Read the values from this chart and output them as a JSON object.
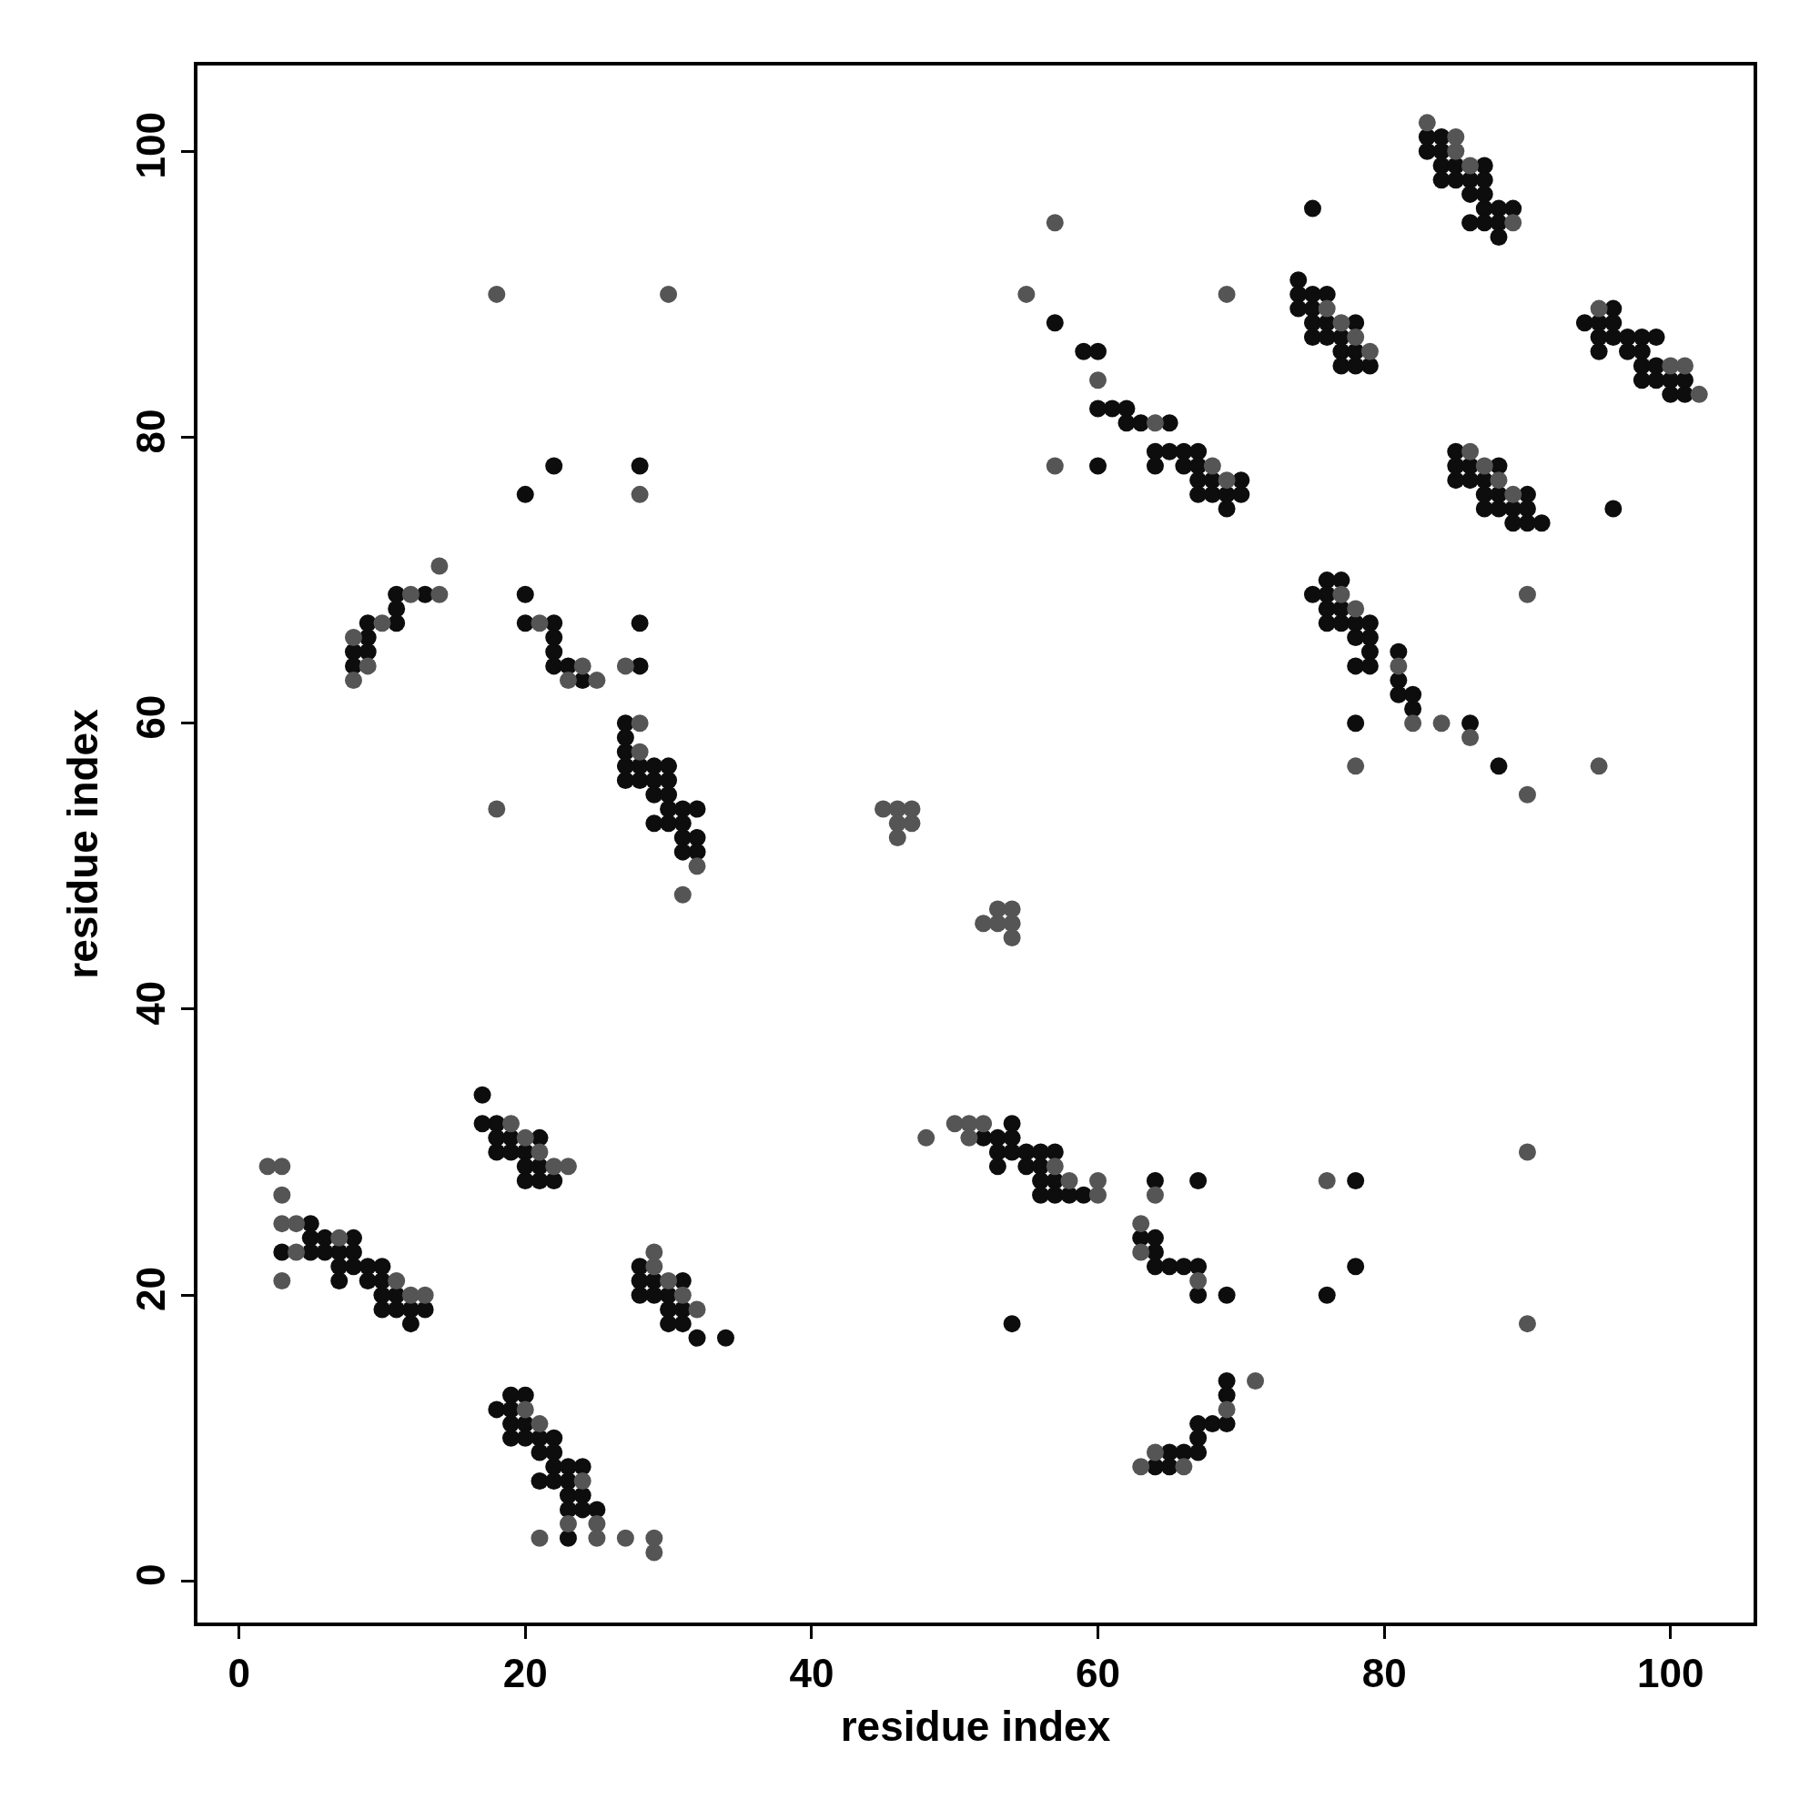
{
  "chart_data": {
    "type": "scatter",
    "xlabel": "residue index",
    "ylabel": "residue index",
    "xlim": [
      -2.9,
      105.8
    ],
    "ylim": [
      -2.9,
      106
    ],
    "xticks": [
      0,
      20,
      40,
      60,
      80,
      100
    ],
    "yticks": [
      0,
      20,
      40,
      60,
      80,
      100
    ],
    "marker": "circle",
    "series": [
      {
        "color": "#0d0d0d",
        "x": [
          3,
          5,
          5,
          6,
          8,
          5,
          6,
          7,
          8,
          7,
          8,
          9,
          10,
          7,
          9,
          10,
          10,
          11,
          10,
          11,
          12,
          13,
          12,
          17,
          17,
          18,
          18,
          19,
          21,
          18,
          19,
          20,
          20,
          21,
          20,
          21,
          22,
          28,
          28,
          29,
          31,
          28,
          29,
          30,
          30,
          31,
          30,
          31,
          32,
          34,
          19,
          20,
          18,
          19,
          19,
          20,
          19,
          20,
          21,
          22,
          21,
          22,
          22,
          23,
          24,
          21,
          22,
          23,
          23,
          24,
          23,
          24,
          25,
          23,
          22,
          28,
          20,
          11,
          13,
          20,
          11,
          9,
          11,
          20,
          22,
          28,
          9,
          22,
          8,
          9,
          22,
          8,
          22,
          23,
          28,
          24,
          27,
          27,
          27,
          27,
          28,
          29,
          30,
          27,
          28,
          29,
          30,
          29,
          30,
          30,
          31,
          32,
          29,
          30,
          31,
          31,
          32,
          31,
          32,
          57,
          59,
          60,
          60,
          61,
          62,
          62,
          63,
          65,
          64,
          65,
          66,
          67,
          60,
          64,
          66,
          67,
          67,
          68,
          70,
          67,
          68,
          69,
          70,
          69,
          54,
          52,
          53,
          54,
          53,
          54,
          55,
          56,
          57,
          53,
          55,
          56,
          56,
          57,
          56,
          57,
          58,
          59,
          64,
          67,
          63,
          64,
          64,
          64,
          65,
          66,
          67,
          67,
          69,
          54,
          69,
          69,
          67,
          68,
          69,
          67,
          65,
          66,
          67,
          64,
          65,
          84,
          83,
          83,
          84,
          84,
          85,
          87,
          84,
          85,
          86,
          87,
          86,
          87,
          75,
          87,
          88,
          89,
          86,
          87,
          88,
          88,
          74,
          74,
          75,
          76,
          74,
          75,
          75,
          76,
          78,
          75,
          76,
          77,
          77,
          78,
          77,
          78,
          79,
          96,
          94,
          95,
          96,
          95,
          96,
          97,
          98,
          99,
          95,
          97,
          98,
          98,
          99,
          98,
          99,
          100,
          101,
          100,
          101,
          85,
          85,
          86,
          88,
          85,
          86,
          87,
          87,
          88,
          90,
          87,
          88,
          89,
          90,
          96,
          89,
          90,
          91,
          76,
          77,
          75,
          76,
          76,
          77,
          76,
          77,
          78,
          79,
          78,
          79,
          79,
          81,
          78,
          79,
          81,
          81,
          82,
          82,
          78,
          86,
          88,
          78,
          78,
          76
        ],
        "values": [
          23,
          25,
          24,
          24,
          24,
          23,
          23,
          23,
          23,
          22,
          22,
          22,
          22,
          21,
          21,
          21,
          20,
          20,
          19,
          19,
          19,
          19,
          18,
          34,
          32,
          32,
          31,
          31,
          31,
          30,
          30,
          30,
          29,
          29,
          28,
          28,
          28,
          22,
          21,
          21,
          21,
          20,
          20,
          20,
          19,
          19,
          18,
          18,
          17,
          17,
          13,
          13,
          12,
          12,
          11,
          11,
          10,
          10,
          10,
          10,
          9,
          9,
          8,
          8,
          8,
          7,
          7,
          7,
          6,
          6,
          5,
          5,
          5,
          3,
          78,
          78,
          76,
          69,
          69,
          69,
          68,
          67,
          67,
          67,
          67,
          67,
          66,
          66,
          65,
          65,
          65,
          64,
          64,
          64,
          64,
          63,
          60,
          59,
          58,
          57,
          57,
          57,
          57,
          56,
          56,
          56,
          56,
          55,
          55,
          54,
          54,
          54,
          53,
          53,
          53,
          52,
          52,
          51,
          51,
          88,
          86,
          86,
          82,
          82,
          82,
          81,
          81,
          81,
          79,
          79,
          79,
          79,
          78,
          78,
          78,
          78,
          77,
          77,
          77,
          76,
          76,
          76,
          76,
          75,
          32,
          31,
          31,
          31,
          30,
          30,
          30,
          30,
          30,
          29,
          29,
          29,
          28,
          28,
          27,
          27,
          27,
          27,
          28,
          28,
          24,
          24,
          23,
          22,
          22,
          22,
          22,
          20,
          20,
          18,
          14,
          13,
          11,
          11,
          11,
          10,
          9,
          9,
          9,
          8,
          8,
          101,
          101,
          100,
          100,
          99,
          99,
          99,
          98,
          98,
          98,
          98,
          97,
          97,
          96,
          96,
          96,
          96,
          95,
          95,
          95,
          94,
          91,
          90,
          90,
          90,
          89,
          89,
          88,
          88,
          88,
          87,
          87,
          87,
          86,
          86,
          85,
          85,
          85,
          89,
          88,
          88,
          88,
          87,
          87,
          87,
          87,
          87,
          86,
          86,
          86,
          85,
          85,
          84,
          84,
          84,
          84,
          83,
          83,
          79,
          78,
          78,
          78,
          77,
          77,
          77,
          76,
          76,
          76,
          75,
          75,
          75,
          75,
          75,
          74,
          74,
          74,
          70,
          70,
          69,
          69,
          68,
          68,
          67,
          67,
          67,
          67,
          66,
          66,
          65,
          65,
          64,
          64,
          63,
          62,
          62,
          61,
          60,
          60,
          57,
          28,
          22,
          20
        ]
      },
      {
        "color": "#555555",
        "x": [
          2,
          3,
          3,
          3,
          4,
          7,
          4,
          3,
          11,
          12,
          13,
          19,
          20,
          21,
          22,
          23,
          29,
          29,
          30,
          31,
          32,
          20,
          21,
          24,
          23,
          25,
          21,
          25,
          27,
          29,
          29,
          18,
          30,
          28,
          14,
          12,
          14,
          10,
          21,
          8,
          9,
          24,
          27,
          8,
          23,
          25,
          28,
          28,
          18,
          32,
          31,
          57,
          55,
          69,
          60,
          64,
          57,
          68,
          69,
          45,
          46,
          47,
          46,
          47,
          46,
          53,
          54,
          52,
          53,
          54,
          54,
          50,
          51,
          52,
          48,
          51,
          57,
          58,
          60,
          60,
          64,
          63,
          63,
          67,
          69,
          71,
          64,
          63,
          66,
          83,
          85,
          85,
          86,
          89,
          76,
          77,
          78,
          79,
          95,
          100,
          101,
          102,
          86,
          87,
          88,
          89,
          77,
          78,
          81,
          82,
          84,
          86,
          78,
          95,
          90,
          90,
          90,
          76,
          90
        ],
        "values": [
          29,
          29,
          27,
          25,
          25,
          24,
          23,
          21,
          21,
          20,
          20,
          32,
          31,
          30,
          29,
          29,
          23,
          22,
          21,
          20,
          19,
          12,
          11,
          7,
          4,
          4,
          3,
          3,
          3,
          3,
          2,
          90,
          90,
          76,
          71,
          69,
          69,
          67,
          67,
          66,
          64,
          64,
          64,
          63,
          63,
          63,
          60,
          58,
          54,
          50,
          48,
          95,
          90,
          90,
          84,
          81,
          78,
          78,
          77,
          54,
          54,
          54,
          53,
          53,
          52,
          47,
          47,
          46,
          46,
          46,
          45,
          32,
          32,
          32,
          31,
          31,
          29,
          28,
          28,
          27,
          27,
          25,
          23,
          21,
          12,
          14,
          9,
          8,
          8,
          102,
          101,
          100,
          99,
          95,
          89,
          88,
          87,
          86,
          89,
          85,
          85,
          83,
          79,
          78,
          77,
          76,
          69,
          68,
          64,
          60,
          60,
          59,
          57,
          57,
          55,
          69,
          30,
          28,
          18
        ]
      }
    ]
  }
}
